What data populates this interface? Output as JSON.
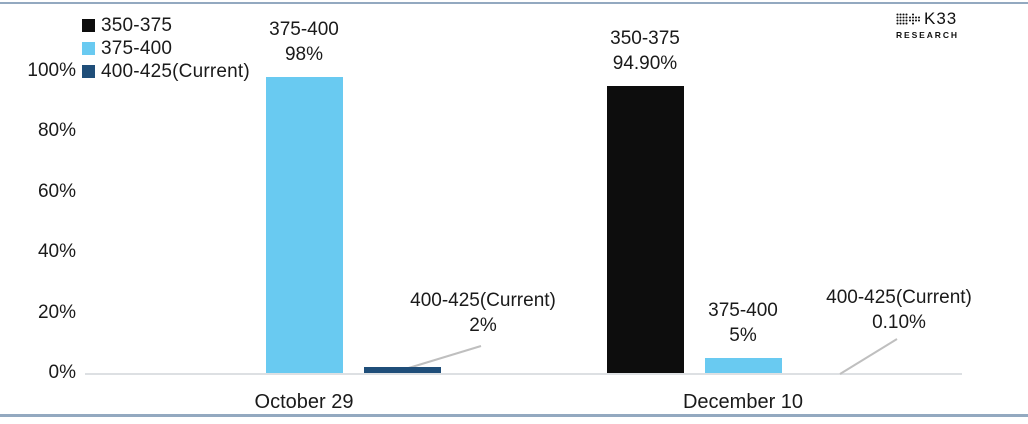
{
  "logo": {
    "name": "K33",
    "subtitle": "RESEARCH"
  },
  "y_axis": {
    "ticks": [
      "0%",
      "20%",
      "40%",
      "60%",
      "80%",
      "100%"
    ]
  },
  "colors": {
    "border_line": "#93A9C0",
    "baseline": "#DDE0E3",
    "leader_line": "#BFBFBF",
    "text": "#1A1A1A",
    "background": "#FFFFFF"
  },
  "chart_data": {
    "type": "bar",
    "title": "",
    "categories": [
      "October 29",
      "December 10"
    ],
    "series": [
      {
        "name": "350-375",
        "color": "#0D0D0D",
        "values": [
          0,
          94.9
        ]
      },
      {
        "name": "375-400",
        "color": "#69CAF1",
        "values": [
          98,
          5
        ]
      },
      {
        "name": "400-425(Current)",
        "color": "#1F4E79",
        "values": [
          2,
          0.1
        ]
      }
    ],
    "ylim": [
      0,
      100
    ],
    "ytick_percents": [
      0,
      20,
      40,
      60,
      80,
      100
    ],
    "grid": false,
    "legend_position": "top-left",
    "annotations": [
      {
        "category": "October 29",
        "series": "375-400",
        "line1": "375-400",
        "line2": "98%"
      },
      {
        "category": "October 29",
        "series": "400-425(Current)",
        "line1": "400-425(Current)",
        "line2": "2%"
      },
      {
        "category": "December 10",
        "series": "350-375",
        "line1": "350-375",
        "line2": "94.90%"
      },
      {
        "category": "December 10",
        "series": "375-400",
        "line1": "375-400",
        "line2": "5%"
      },
      {
        "category": "December 10",
        "series": "400-425(Current)",
        "line1": "400-425(Current)",
        "line2": "0.10%"
      }
    ]
  }
}
